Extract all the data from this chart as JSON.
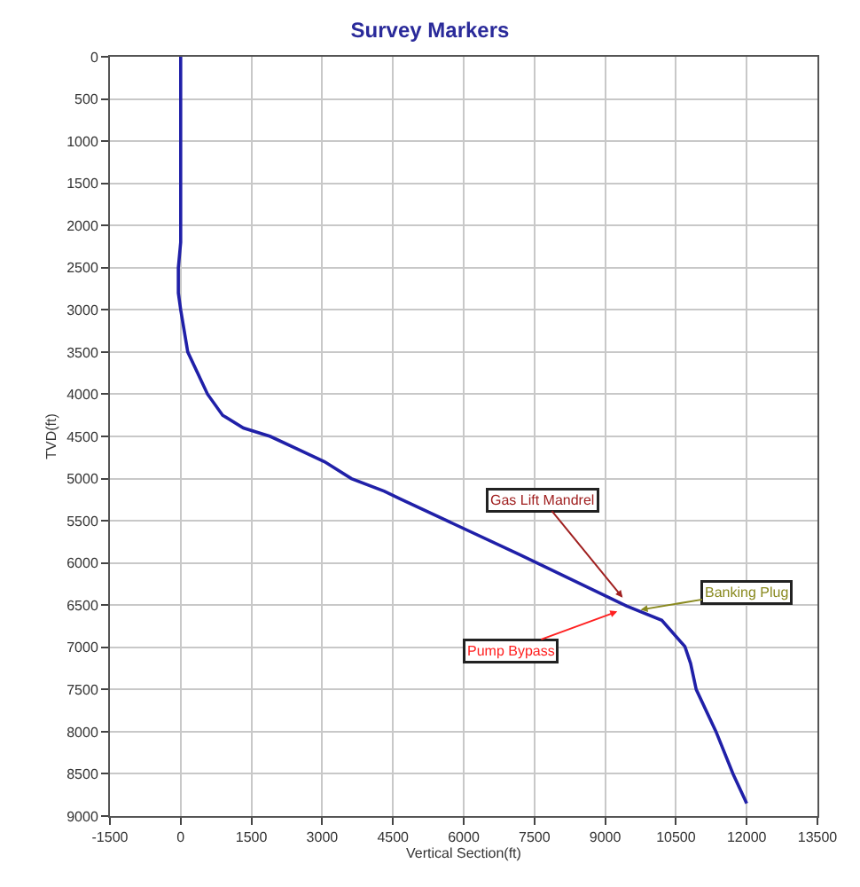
{
  "chart_data": {
    "type": "line",
    "title": "Survey Markers",
    "xlabel": "Vertical Section(ft)",
    "ylabel": "TVD(ft)",
    "series": [
      {
        "color": "#2020a8",
        "x": [
          0,
          0,
          0,
          -50,
          -50,
          0,
          150,
          570,
          890,
          1330,
          1900,
          3050,
          3620,
          4320,
          4650,
          7180,
          9450,
          10200,
          10690,
          10810,
          10930,
          11350,
          11710,
          12000
        ],
        "values": [
          0,
          1000,
          2200,
          2500,
          2800,
          3000,
          3500,
          4000,
          4250,
          4400,
          4500,
          4800,
          5000,
          5150,
          5240,
          5900,
          6510,
          6680,
          6990,
          7190,
          7500,
          8000,
          8500,
          8850
        ]
      }
    ],
    "annotations": [
      {
        "text": "Gas Lift Mandrel",
        "x": 9370,
        "y": 6410
      },
      {
        "text": "Banking Plug",
        "x": 9750,
        "y": 6555
      },
      {
        "text": "Pump Bypass",
        "x": 9257,
        "y": 6575
      }
    ],
    "xlim": [
      -1500,
      13500
    ],
    "xticks": [
      -1500,
      0,
      1500,
      3000,
      4500,
      6000,
      7500,
      9000,
      10500,
      12000,
      13500
    ],
    "ylim": [
      9000,
      0
    ],
    "yticks": [
      0,
      500,
      1000,
      1500,
      2000,
      2500,
      3000,
      3500,
      4000,
      4500,
      5000,
      5500,
      6000,
      6500,
      7000,
      7500,
      8000,
      8500,
      9000
    ],
    "grid": true,
    "marker": "none",
    "line_style": "solid"
  }
}
